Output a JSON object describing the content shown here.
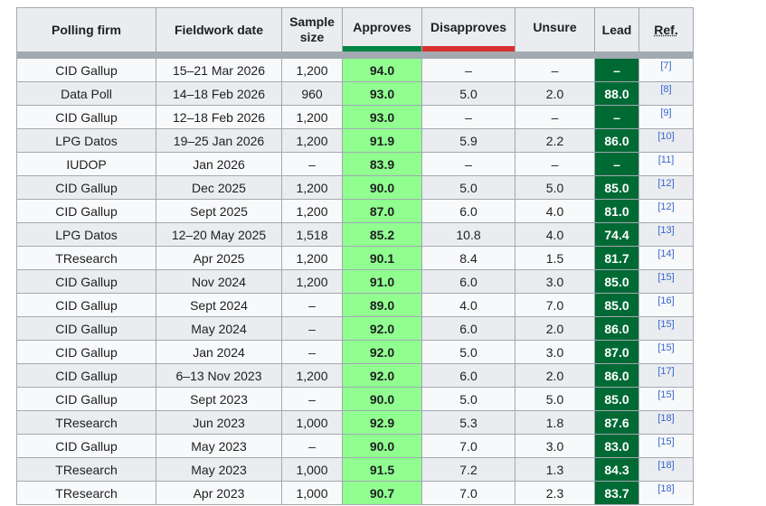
{
  "headers": {
    "firm": "Polling firm",
    "date": "Fieldwork date",
    "sample": "Sample size",
    "approves": "Approves",
    "disapproves": "Disapproves",
    "unsure": "Unsure",
    "lead": "Lead",
    "ref": "Ref."
  },
  "colors": {
    "approves_bar": "#008542",
    "disapproves_bar": "#d72f2f",
    "approves_cell": "#90ff90",
    "lead_cell": "#006a35"
  },
  "rows": [
    {
      "firm": "CID Gallup",
      "date": "15–21 Mar 2026",
      "sample": "1,200",
      "approves": "94.0",
      "disapproves": "–",
      "unsure": "–",
      "lead": "–",
      "ref": "[7]"
    },
    {
      "firm": "Data Poll",
      "date": "14–18 Feb 2026",
      "sample": "960",
      "approves": "93.0",
      "disapproves": "5.0",
      "unsure": "2.0",
      "lead": "88.0",
      "ref": "[8]"
    },
    {
      "firm": "CID Gallup",
      "date": "12–18 Feb 2026",
      "sample": "1,200",
      "approves": "93.0",
      "disapproves": "–",
      "unsure": "–",
      "lead": "–",
      "ref": "[9]"
    },
    {
      "firm": "LPG Datos",
      "date": "19–25 Jan 2026",
      "sample": "1,200",
      "approves": "91.9",
      "disapproves": "5.9",
      "unsure": "2.2",
      "lead": "86.0",
      "ref": "[10]"
    },
    {
      "firm": "IUDOP",
      "date": "Jan 2026",
      "sample": "–",
      "approves": "83.9",
      "disapproves": "–",
      "unsure": "–",
      "lead": "–",
      "ref": "[11]"
    },
    {
      "firm": "CID Gallup",
      "date": "Dec 2025",
      "sample": "1,200",
      "approves": "90.0",
      "disapproves": "5.0",
      "unsure": "5.0",
      "lead": "85.0",
      "ref": "[12]"
    },
    {
      "firm": "CID Gallup",
      "date": "Sept 2025",
      "sample": "1,200",
      "approves": "87.0",
      "disapproves": "6.0",
      "unsure": "4.0",
      "lead": "81.0",
      "ref": "[12]"
    },
    {
      "firm": "LPG Datos",
      "date": "12–20 May 2025",
      "sample": "1,518",
      "approves": "85.2",
      "disapproves": "10.8",
      "unsure": "4.0",
      "lead": "74.4",
      "ref": "[13]"
    },
    {
      "firm": "TResearch",
      "date": "Apr 2025",
      "sample": "1,200",
      "approves": "90.1",
      "disapproves": "8.4",
      "unsure": "1.5",
      "lead": "81.7",
      "ref": "[14]"
    },
    {
      "firm": "CID Gallup",
      "date": "Nov 2024",
      "sample": "1,200",
      "approves": "91.0",
      "disapproves": "6.0",
      "unsure": "3.0",
      "lead": "85.0",
      "ref": "[15]"
    },
    {
      "firm": "CID Gallup",
      "date": "Sept 2024",
      "sample": "–",
      "approves": "89.0",
      "disapproves": "4.0",
      "unsure": "7.0",
      "lead": "85.0",
      "ref": "[16]"
    },
    {
      "firm": "CID Gallup",
      "date": "May 2024",
      "sample": "–",
      "approves": "92.0",
      "disapproves": "6.0",
      "unsure": "2.0",
      "lead": "86.0",
      "ref": "[15]"
    },
    {
      "firm": "CID Gallup",
      "date": "Jan 2024",
      "sample": "–",
      "approves": "92.0",
      "disapproves": "5.0",
      "unsure": "3.0",
      "lead": "87.0",
      "ref": "[15]"
    },
    {
      "firm": "CID Gallup",
      "date": "6–13 Nov 2023",
      "sample": "1,200",
      "approves": "92.0",
      "disapproves": "6.0",
      "unsure": "2.0",
      "lead": "86.0",
      "ref": "[17]"
    },
    {
      "firm": "CID Gallup",
      "date": "Sept 2023",
      "sample": "–",
      "approves": "90.0",
      "disapproves": "5.0",
      "unsure": "5.0",
      "lead": "85.0",
      "ref": "[15]"
    },
    {
      "firm": "TResearch",
      "date": "Jun 2023",
      "sample": "1,000",
      "approves": "92.9",
      "disapproves": "5.3",
      "unsure": "1.8",
      "lead": "87.6",
      "ref": "[18]"
    },
    {
      "firm": "CID Gallup",
      "date": "May 2023",
      "sample": "–",
      "approves": "90.0",
      "disapproves": "7.0",
      "unsure": "3.0",
      "lead": "83.0",
      "ref": "[15]"
    },
    {
      "firm": "TResearch",
      "date": "May 2023",
      "sample": "1,000",
      "approves": "91.5",
      "disapproves": "7.2",
      "unsure": "1.3",
      "lead": "84.3",
      "ref": "[18]"
    },
    {
      "firm": "TResearch",
      "date": "Apr 2023",
      "sample": "1,000",
      "approves": "90.7",
      "disapproves": "7.0",
      "unsure": "2.3",
      "lead": "83.7",
      "ref": "[18]"
    }
  ]
}
